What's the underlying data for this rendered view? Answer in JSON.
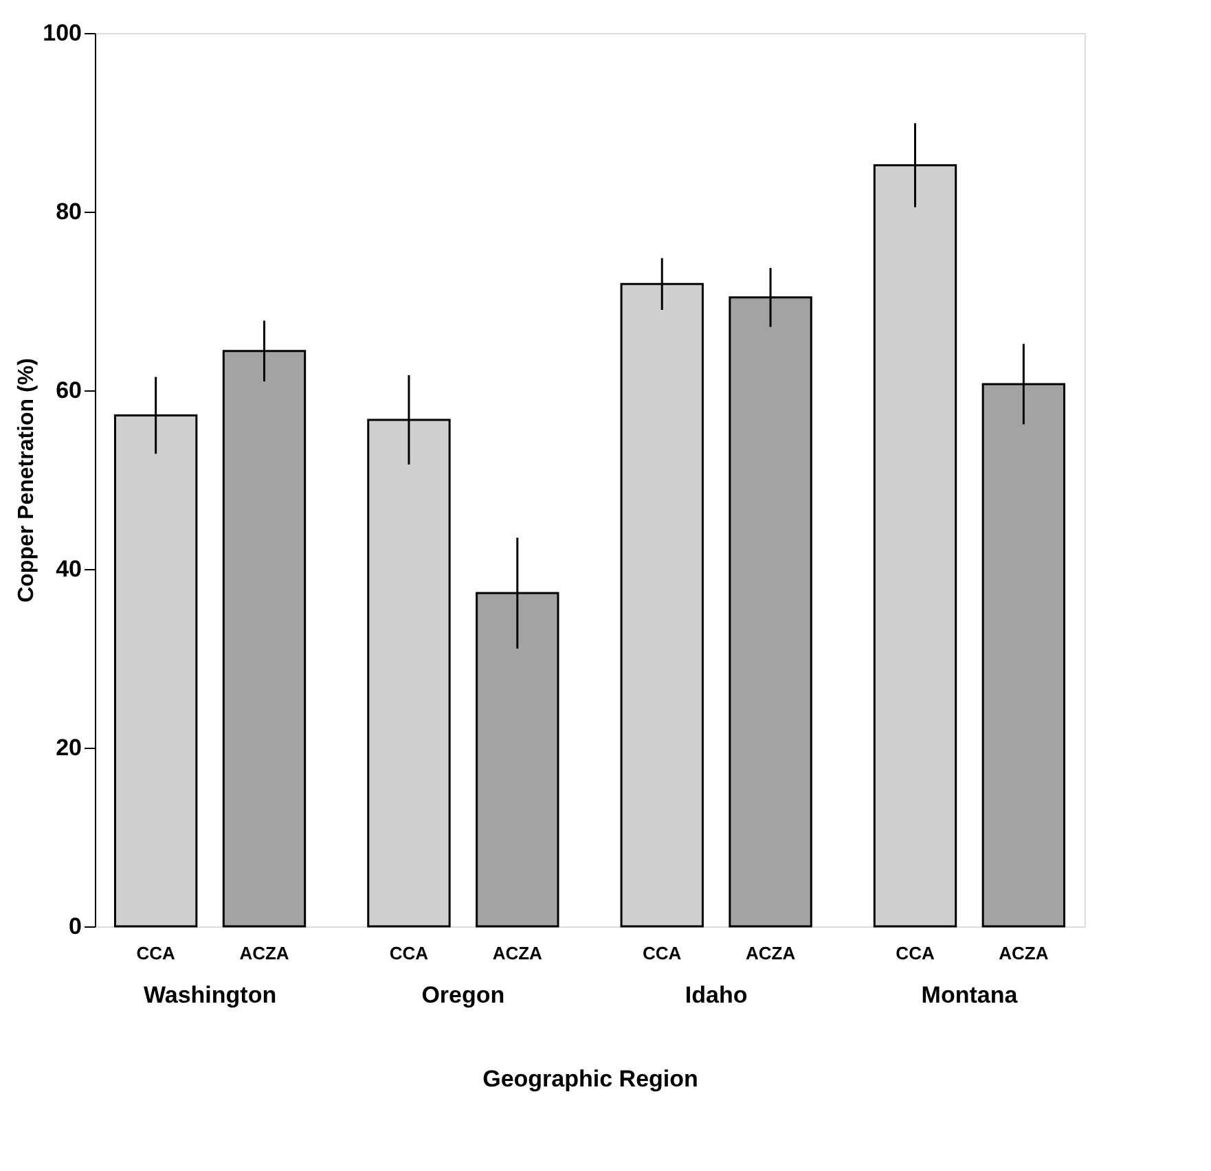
{
  "chart_data": {
    "type": "bar",
    "xlabel": "Geographic Region",
    "ylabel": "Copper Penetration (%)",
    "categories": [
      "Washington",
      "Oregon",
      "Idaho",
      "Montana"
    ],
    "series": [
      {
        "name": "CCA",
        "color": "#cfcfcf",
        "values": [
          57.2,
          56.7,
          71.9,
          85.2
        ],
        "errors": [
          4.3,
          5.0,
          2.9,
          4.7
        ]
      },
      {
        "name": "ACZA",
        "color": "#a3a3a3",
        "values": [
          64.4,
          37.3,
          70.4,
          60.7
        ],
        "errors": [
          3.4,
          6.2,
          3.3,
          4.5
        ]
      }
    ],
    "ylim": [
      0,
      100
    ],
    "yticks": [
      0,
      20,
      40,
      60,
      80,
      100
    ],
    "grid": false,
    "legend": false
  }
}
